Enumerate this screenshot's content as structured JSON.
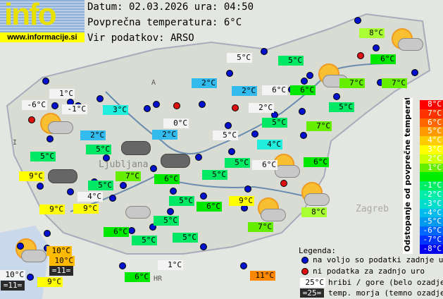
{
  "logo": {
    "text": "info",
    "url": "www.informacije.si"
  },
  "header": {
    "date_line": "Datum: 02.03.2026 ura: 04:50",
    "avg_line": "Povprečna temperatura: 6°C",
    "source_line": "Vir podatkov: ARSO"
  },
  "map_labels": {
    "country_codes": [
      "A",
      "I",
      "HR"
    ],
    "cities": [
      "Ljubljana",
      "Zagreb"
    ]
  },
  "stations": [
    "8°C",
    "5°C",
    "5°C",
    "6°C",
    "2°C",
    "2°C",
    "6°C",
    "6°C",
    "7°C",
    "7°C",
    "5°C",
    "2°C",
    "5°C",
    "7°C",
    "5°C",
    "4°C",
    "5°C",
    "6°C",
    "6°C",
    "1°C",
    "-6°C",
    "-1°C",
    "3°C",
    "2°C",
    "5°C",
    "0°C",
    "2°C",
    "5°C",
    "9°C",
    "7°C",
    "6°C",
    "5°C",
    "5°C",
    "4°C",
    "9°C",
    "9°C",
    "5°C",
    "6°C",
    "9°C",
    "5°C",
    "5°C",
    "6°C",
    "5°C",
    "7°C",
    "8°C",
    "10°C",
    "10°C",
    "=11=",
    "10°C",
    "=11=",
    "9°C",
    "6°C",
    "1°C",
    "11°C"
  ],
  "scale": {
    "title": "Odstopanje od povprečne temperature:",
    "steps": [
      {
        "label": "8°C",
        "color": "#ff0000"
      },
      {
        "label": "7°C",
        "color": "#ff3300"
      },
      {
        "label": "6°C",
        "color": "#ff6600"
      },
      {
        "label": "5°C",
        "color": "#ff9900"
      },
      {
        "label": "4°C",
        "color": "#ffcc00"
      },
      {
        "label": "3°C",
        "color": "#ffff00"
      },
      {
        "label": "2°C",
        "color": "#ccff00"
      },
      {
        "label": "1°C",
        "color": "#66ee00"
      },
      {
        "label": "",
        "color": "#00ee00"
      },
      {
        "label": "-1°C",
        "color": "#00ee66"
      },
      {
        "label": "-2°C",
        "color": "#00eeaa"
      },
      {
        "label": "-3°C",
        "color": "#00ddcc"
      },
      {
        "label": "-4°C",
        "color": "#00bbee"
      },
      {
        "label": "-5°C",
        "color": "#0099ee"
      },
      {
        "label": "-6°C",
        "color": "#0066ff"
      },
      {
        "label": "-7°C",
        "color": "#0033ff"
      },
      {
        "label": "-8°C",
        "color": "#0000ee"
      }
    ]
  },
  "legend": {
    "title": "Legenda:",
    "blue": "na voljo so podatki zadnje ure",
    "red": "ni podatka za zadnjo uro",
    "hill_sample": "25°C",
    "hill": "hribi / gore (belo ozadje)",
    "sea_sample": "=25=",
    "sea": "temp. morja (temno ozadje)"
  }
}
